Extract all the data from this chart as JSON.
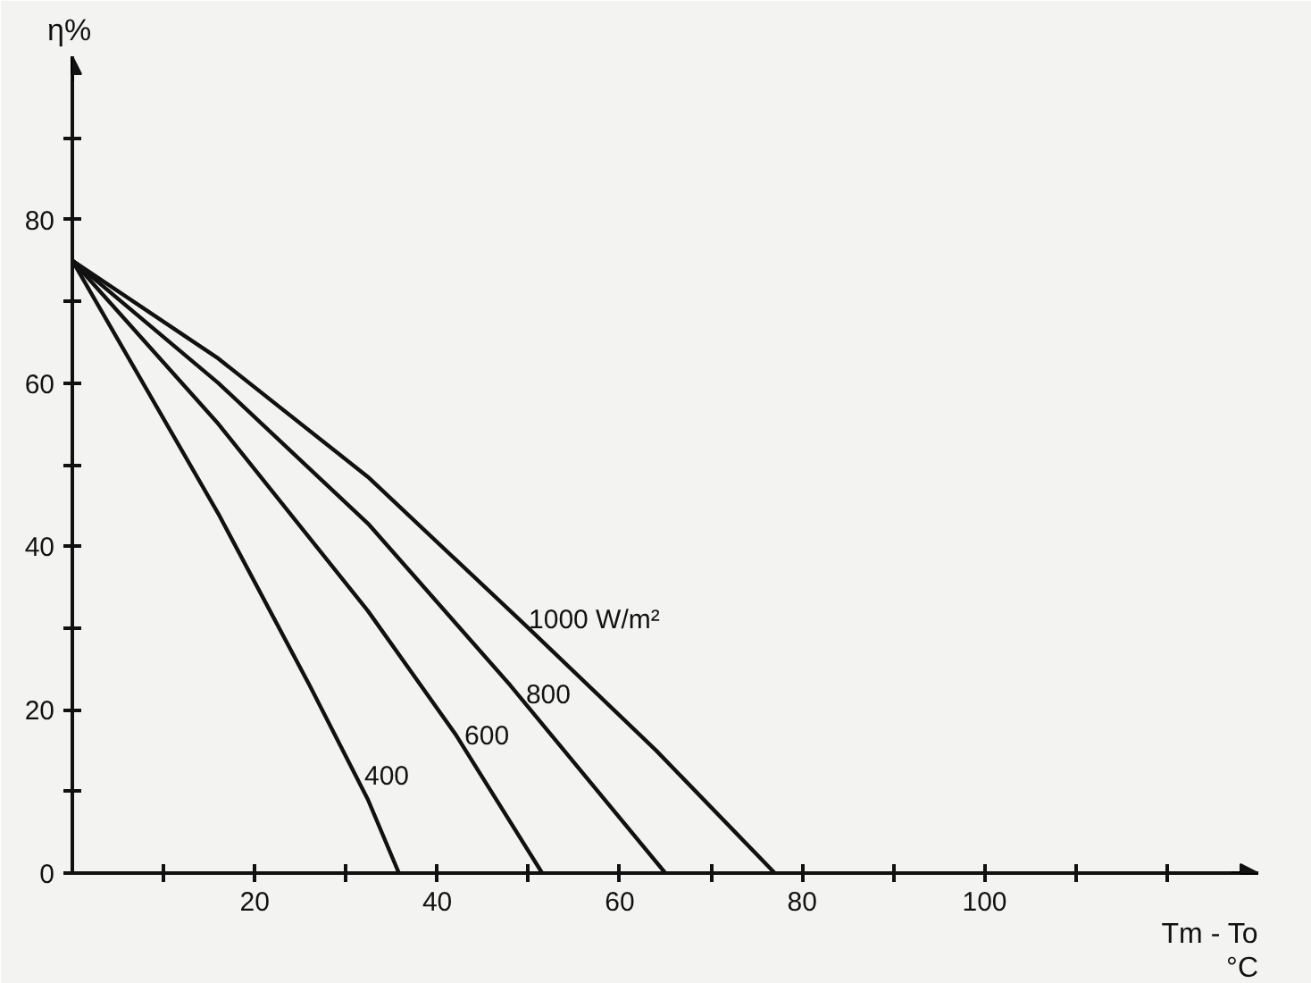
{
  "chart_data": {
    "type": "line",
    "xlabel": "Tm - To",
    "ylabel": "η%",
    "annotations": [
      "°C"
    ],
    "xlim": [
      0,
      130
    ],
    "ylim": [
      0,
      100
    ],
    "xticks": [
      {
        "value": 10,
        "label": null
      },
      20,
      {
        "value": 30,
        "label": null
      },
      40,
      {
        "value": 50,
        "label": null
      },
      60,
      {
        "value": 70,
        "label": null
      },
      80,
      {
        "value": 90,
        "label": null
      },
      100,
      {
        "value": 110,
        "label": null
      },
      {
        "value": 120,
        "label": null
      }
    ],
    "yticks": [
      0,
      {
        "value": 10,
        "label": null
      },
      20,
      {
        "value": 30,
        "label": null
      },
      40,
      {
        "value": 50,
        "label": null
      },
      60,
      {
        "value": 70,
        "label": null
      },
      80,
      {
        "value": 90,
        "label": null
      }
    ],
    "grid": false,
    "marker": "none",
    "line_style": "solid",
    "series": [
      {
        "name": "400",
        "color": "#111111",
        "x": [
          0,
          16,
          26,
          32.4,
          35.8
        ],
        "values": [
          75,
          44,
          23,
          9,
          0
        ]
      },
      {
        "name": "600",
        "color": "#111111",
        "x": [
          0,
          16,
          32.4,
          42,
          51.5
        ],
        "values": [
          75,
          55,
          32.1,
          17,
          0
        ]
      },
      {
        "name": "800",
        "color": "#111111",
        "x": [
          0,
          16,
          32.4,
          48,
          65
        ],
        "values": [
          75,
          60,
          42.8,
          23,
          0
        ]
      },
      {
        "name": "1000 W/m²",
        "color": "#111111",
        "x": [
          0,
          16,
          32.4,
          50,
          64,
          77
        ],
        "values": [
          75,
          63,
          48.5,
          30,
          15,
          0
        ]
      }
    ]
  }
}
